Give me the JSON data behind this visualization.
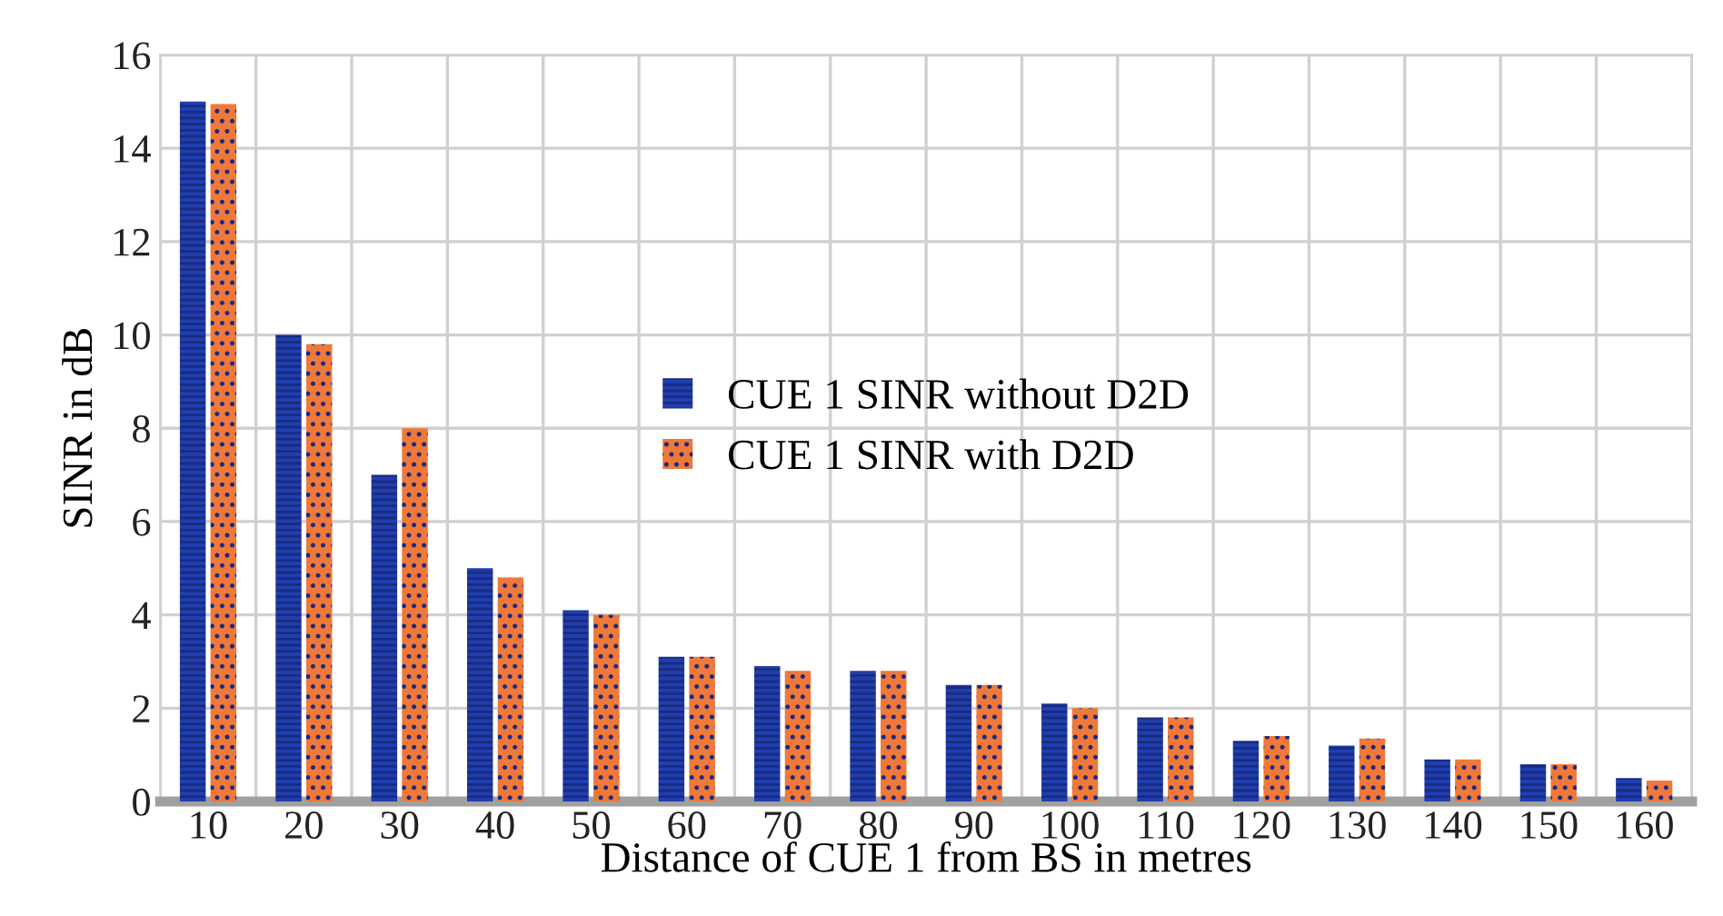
{
  "chart_data": {
    "type": "bar",
    "xlabel": "Distance of CUE 1 from BS in metres",
    "ylabel": "SINR in dB",
    "categories": [
      "10",
      "20",
      "30",
      "40",
      "50",
      "60",
      "70",
      "80",
      "90",
      "100",
      "110",
      "120",
      "130",
      "140",
      "150",
      "160"
    ],
    "series": [
      {
        "name": "CUE 1 SINR without D2D",
        "color": "#1f3fb0",
        "values": [
          15,
          10,
          7,
          5,
          4.1,
          3.1,
          2.9,
          2.8,
          2.5,
          2.1,
          1.8,
          1.3,
          1.2,
          0.9,
          0.8,
          0.5
        ]
      },
      {
        "name": "CUE 1 SINR with D2D",
        "color": "#f07838",
        "values": [
          14.95,
          9.8,
          8,
          4.8,
          4,
          3.1,
          2.8,
          2.8,
          2.5,
          2,
          1.8,
          1.4,
          1.35,
          0.9,
          0.8,
          0.45
        ]
      }
    ],
    "ylim": [
      0,
      16
    ],
    "yticks": [
      0,
      2,
      4,
      6,
      8,
      10,
      12,
      14,
      16
    ],
    "grid": true,
    "legend": "center"
  }
}
